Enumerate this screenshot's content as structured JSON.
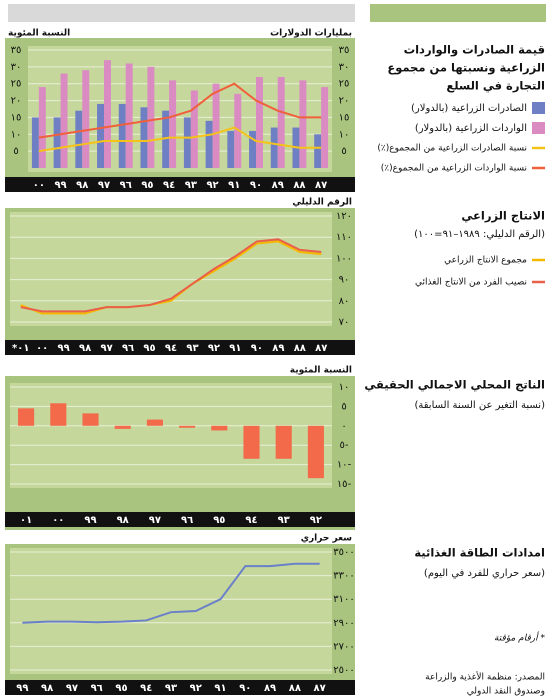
{
  "chart_data": [
    {
      "type": "bar",
      "title": [
        "قيمة الصادرات والواردات",
        "الزراعية ونسبتها من مجموع",
        "التجارة في السلع"
      ],
      "y_label": "بمليارات الدولارات",
      "y2_label": "النسبة المئوية",
      "categories": [
        "٨٧",
        "٨٨",
        "٨٩",
        "٩٠",
        "٩١",
        "٩٢",
        "٩٣",
        "٩٤",
        "٩٥",
        "٩٦",
        "٩٧",
        "٩٨",
        "٩٩",
        "٠٠"
      ],
      "ylim": [
        0,
        35
      ],
      "yticks": [
        {
          "value": 5,
          "label": "٥"
        },
        {
          "value": 10,
          "label": "١٠"
        },
        {
          "value": 15,
          "label": "١٥"
        },
        {
          "value": 20,
          "label": "٢٠"
        },
        {
          "value": 25,
          "label": "٢٥"
        },
        {
          "value": 30,
          "label": "٣٠"
        },
        {
          "value": 35,
          "label": "٣٥"
        }
      ],
      "y2lim": [
        0,
        35
      ],
      "y2ticks": [
        {
          "value": 5,
          "label": "٥"
        },
        {
          "value": 10,
          "label": "١٠"
        },
        {
          "value": 15,
          "label": "١٥"
        },
        {
          "value": 20,
          "label": "٢٠"
        },
        {
          "value": 25,
          "label": "٢٥"
        },
        {
          "value": 30,
          "label": "٣٠"
        },
        {
          "value": 35,
          "label": "٣٥"
        }
      ],
      "grid": true,
      "series": [
        {
          "name": "الصادرات الزراعية (بالدولار)",
          "color": "#6f7fc4",
          "kind": "bar",
          "values": [
            10,
            12,
            12,
            11,
            11,
            14,
            15,
            17,
            18,
            19,
            19,
            17,
            15,
            15
          ]
        },
        {
          "name": "الواردات الزراعية (بالدولار)",
          "color": "#d98bc2",
          "kind": "bar",
          "values": [
            24,
            26,
            27,
            27,
            22,
            25,
            23,
            26,
            30,
            31,
            32,
            29,
            28,
            24
          ]
        },
        {
          "name": "نسبة الصادرات الزراعية من المجموع(٪)",
          "color": "#f5c21a",
          "kind": "line",
          "axis": "y2",
          "values": [
            6,
            6,
            7,
            8,
            12,
            10,
            9,
            9,
            8,
            8,
            8,
            7,
            6,
            5
          ]
        },
        {
          "name": "نسبة الواردات الزراعية من المجموع(٪)",
          "color": "#f0603a",
          "kind": "line",
          "axis": "y2",
          "values": [
            15,
            15,
            17,
            20,
            25,
            22,
            17,
            15,
            14,
            13,
            12,
            11,
            10,
            9
          ]
        }
      ]
    },
    {
      "type": "line",
      "title": [
        "الانتاج الزراعي"
      ],
      "subtitle": "(الرقم الدليلي: ١٩٨٩–٩١=١٠٠)",
      "y_label": "الرقم الدليلي",
      "categories": [
        "٨٧",
        "٨٨",
        "٨٩",
        "٩٠",
        "٩١",
        "٩٢",
        "٩٣",
        "٩٤",
        "٩٥",
        "٩٦",
        "٩٧",
        "٩٨",
        "٩٩",
        "٠٠",
        "*٠١"
      ],
      "ylim": [
        70,
        120
      ],
      "yticks": [
        {
          "value": 70,
          "label": "٧٠"
        },
        {
          "value": 80,
          "label": "٨٠"
        },
        {
          "value": 90,
          "label": "٩٠"
        },
        {
          "value": 100,
          "label": "١٠٠"
        },
        {
          "value": 110,
          "label": "١١٠"
        },
        {
          "value": 120,
          "label": "١٢٠"
        }
      ],
      "grid": true,
      "series": [
        {
          "name": "مجموع الانتاج الزراعي",
          "color": "#f5b800",
          "kind": "line",
          "values": [
            102,
            103,
            108,
            107,
            100,
            94,
            88,
            80,
            78,
            77,
            77,
            74,
            74,
            74,
            78
          ]
        },
        {
          "name": "نصيب الفرد من الانتاج الغذائي",
          "color": "#e8604a",
          "kind": "line",
          "values": [
            103,
            104,
            109,
            108,
            101,
            95,
            88,
            81,
            78,
            77,
            77,
            75,
            75,
            75,
            77
          ]
        }
      ]
    },
    {
      "type": "bar",
      "title": [
        "الناتج المحلي الاجمالي الحقيقي"
      ],
      "subtitle": "(نسبة التغير عن السنة السابقة)",
      "y_label": "النسبة المئوية",
      "categories": [
        "٩٢",
        "٩٣",
        "٩٤",
        "٩٥",
        "٩٦",
        "٩٧",
        "٩٨",
        "٩٩",
        "٠٠",
        "٠١"
      ],
      "ylim": [
        -15,
        10
      ],
      "yticks": [
        {
          "value": -15,
          "label": "١٥-"
        },
        {
          "value": -10,
          "label": "١٠-"
        },
        {
          "value": -5,
          "label": "٥-"
        },
        {
          "value": 0,
          "label": "٠"
        },
        {
          "value": 5,
          "label": "٥"
        },
        {
          "value": 10,
          "label": "١٠"
        }
      ],
      "grid": true,
      "series": [
        {
          "color": "#f26a4a",
          "kind": "bar",
          "values": [
            -13.5,
            -8.5,
            -8.5,
            -1.2,
            -0.5,
            1.6,
            -0.8,
            3.2,
            5.8,
            4.5
          ]
        }
      ]
    },
    {
      "type": "line",
      "title": [
        "امدادات الطاقة الغذائية"
      ],
      "subtitle": "(سعر حراري للفرد في اليوم)",
      "y_label": "سعر حراري",
      "categories": [
        "٨٧",
        "٨٨",
        "٨٩",
        "٩٠",
        "٩١",
        "٩٢",
        "٩٣",
        "٩٤",
        "٩٥",
        "٩٦",
        "٩٧",
        "٩٨",
        "٩٩"
      ],
      "ylim": [
        2500,
        3500
      ],
      "yticks": [
        {
          "value": 2500,
          "label": "٢٥٠٠"
        },
        {
          "value": 2700,
          "label": "٢٧٠٠"
        },
        {
          "value": 2900,
          "label": "٢٩٠٠"
        },
        {
          "value": 3100,
          "label": "٣١٠٠"
        },
        {
          "value": 3300,
          "label": "٣٣٠٠"
        },
        {
          "value": 3500,
          "label": "٣٥٠٠"
        }
      ],
      "grid": true,
      "series": [
        {
          "color": "#6a80c8",
          "kind": "line",
          "values": [
            3400,
            3400,
            3380,
            3380,
            3100,
            3000,
            2990,
            2920,
            2910,
            2905,
            2910,
            2910,
            2900
          ]
        }
      ]
    }
  ],
  "notes": {
    "provisional": "* أرقام مؤقتة",
    "source": [
      "المصدر: منظمة الأغذية والزراعة",
      "وصندوق النقد الدولي"
    ]
  }
}
